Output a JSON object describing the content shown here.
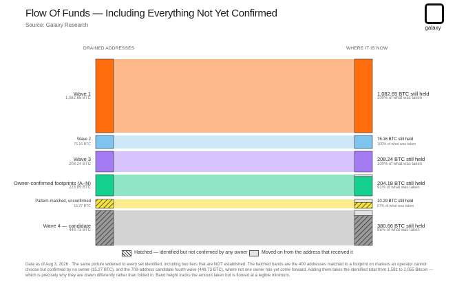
{
  "header": {
    "title": "Flow Of Funds — Including Everything Not Yet Confirmed",
    "source": "Source: Galaxy Research",
    "logo_text": "galaxy"
  },
  "columns": {
    "left": "DRAINED ADDRESSES",
    "right": "WHERE IT IS NOW"
  },
  "flows": [
    {
      "name": "Wave 1",
      "amount": "1,082.65 BTC",
      "still_held": "1,082.65 BTC still held",
      "share": "100% of what was taken",
      "color": "#ff6d0d",
      "band": "#fdb98a",
      "pattern": "solid",
      "fraction_held": 1.0
    },
    {
      "name": "Wave 2",
      "amount": "76.16 BTC",
      "still_held": "76.16 BTC still held",
      "share": "100% of what was taken",
      "color": "#7ec4ee",
      "band": "#cfe8f8",
      "pattern": "solid",
      "fraction_held": 1.0
    },
    {
      "name": "Wave 3",
      "amount": "208.24 BTC",
      "still_held": "208.24 BTC still held",
      "share": "100% of what was taken",
      "color": "#a47bf3",
      "band": "#d7c3fb",
      "pattern": "solid",
      "fraction_held": 1.0
    },
    {
      "name": "Owner-confirmed footprints (A–N)",
      "amount": "223.85 BTC",
      "still_held": "204.18 BTC still held",
      "share": "91% of what was taken",
      "color": "#14d08e",
      "band": "#8ee6c5",
      "pattern": "solid",
      "fraction_held": 0.91
    },
    {
      "name": "Pattern-matched, unconfirmed",
      "amount": "15.27 BTC",
      "still_held": "10.29 BTC still held",
      "share": "67% of what was taken",
      "color": "#f6e33c",
      "band": "#faec8f",
      "pattern": "hatched",
      "fraction_held": 0.67
    },
    {
      "name": "Wave 4 — candidate",
      "amount": "448.73 BTC",
      "still_held": "380.66 BTC still held",
      "share": "85% of what was taken",
      "color": "#9a9a9a",
      "band": "#d3d3d3",
      "pattern": "hatched",
      "fraction_held": 0.85
    }
  ],
  "legend": {
    "hatched": "Hatched — identified but not confirmed by any owner",
    "moved": "Moved on from the address that received it"
  },
  "footnote": "Data as of Aug 3, 2026 · The same picture widened to every set identified, including two tiers that are NOT established. The hatched bands are the 400 addresses matched to a footprint on markers an operator cannot choose but confirmed by no owner (15.27 BTC), and the 709-address candidate fourth wave (448.73 BTC), where not one owner has yet come forward. Adding them takes the identified total from 1,591 to 2,055 Bitcoin — which is precisely why they are drawn differently rather than folded in. Band height tracks the amount taken but is floored at a legible minimum."
}
